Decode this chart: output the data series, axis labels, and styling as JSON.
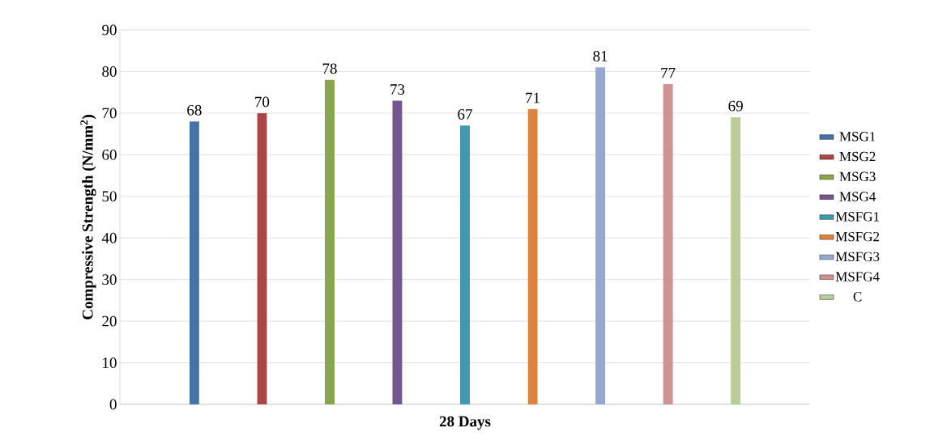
{
  "chart_data": {
    "type": "bar",
    "xlabel": "28 Days",
    "ylabel": "Compressive Strength (N/mm$^{2}$)",
    "categories": [
      null
    ],
    "series": [
      {
        "name": "MSG1",
        "color": "#4572a7",
        "values": [
          68
        ]
      },
      {
        "name": "MSG2",
        "color": "#aa4643",
        "values": [
          70
        ]
      },
      {
        "name": "MSG3",
        "color": "#89a54e",
        "values": [
          78
        ]
      },
      {
        "name": "MSG4",
        "color": "#71588f",
        "values": [
          73
        ]
      },
      {
        "name": "MSFG1",
        "color": "#4198af",
        "values": [
          67
        ]
      },
      {
        "name": "MSFG2",
        "color": "#db843d",
        "values": [
          71
        ]
      },
      {
        "name": "MSFG3",
        "color": "#93a9cf",
        "values": [
          81
        ]
      },
      {
        "name": "MSFG4",
        "color": "#d19392",
        "values": [
          77
        ]
      },
      {
        "name": "C",
        "color": "#b9cd96",
        "values": [
          69
        ]
      }
    ],
    "ylim": [
      0,
      90
    ],
    "yticks": [
      0,
      10,
      20,
      30,
      40,
      50,
      60,
      70,
      80,
      90
    ],
    "grid": "y",
    "legend": "right",
    "data_labels": true
  }
}
